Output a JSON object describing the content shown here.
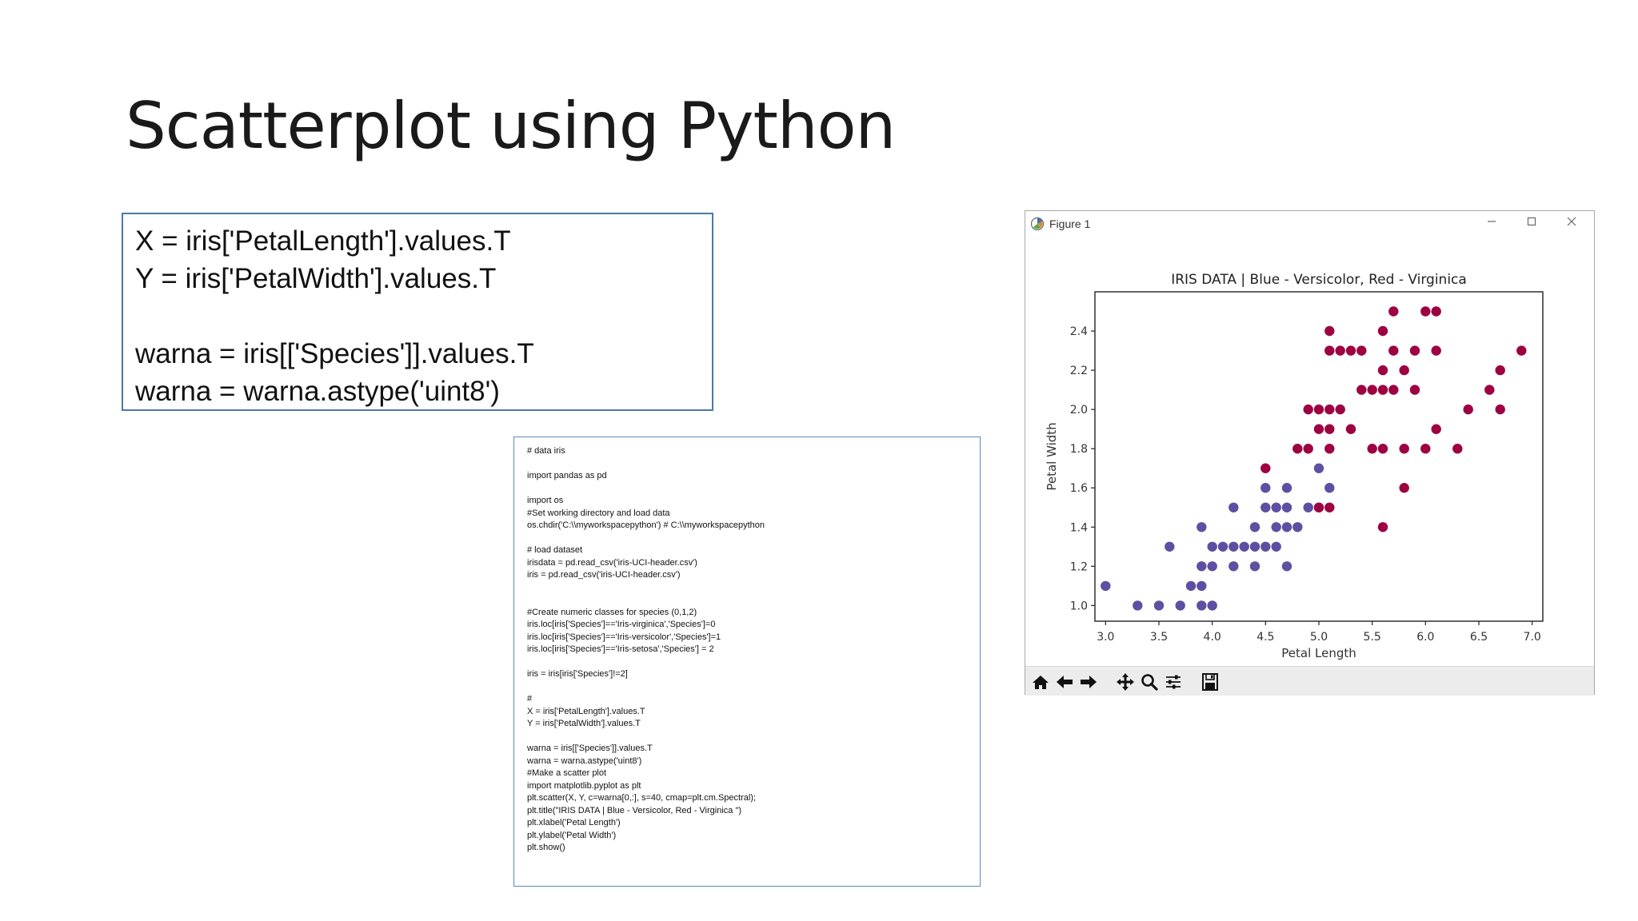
{
  "slide": {
    "title": "Scatterplot using Python",
    "code_box_lines": [
      "X = iris['PetalLength'].values.T",
      "Y = iris['PetalWidth'].values.T",
      "",
      "warna = iris[['Species']].values.T",
      "warna = warna.astype('uint8')"
    ],
    "full_code_lines": [
      "# data iris",
      "",
      "import pandas as pd",
      "",
      "import os",
      "#Set working directory and load data",
      "os.chdir('C:\\\\myworkspacepython') # C:\\\\myworkspacepython",
      "",
      "# load dataset",
      "irisdata = pd.read_csv('iris-UCI-header.csv')",
      "iris = pd.read_csv('iris-UCI-header.csv')",
      "",
      "",
      "#Create numeric classes for species (0,1,2)",
      "iris.loc[iris['Species']=='Iris-virginica','Species']=0",
      "iris.loc[iris['Species']=='Iris-versicolor','Species']=1",
      "iris.loc[iris['Species']=='Iris-setosa','Species'] = 2",
      "",
      "iris = iris[iris['Species']!=2]",
      "",
      "#",
      "X = iris['PetalLength'].values.T",
      "Y = iris['PetalWidth'].values.T",
      "",
      "warna = iris[['Species']].values.T",
      "warna = warna.astype('uint8')",
      "#Make a scatter plot",
      "import matplotlib.pyplot as plt",
      "plt.scatter(X, Y, c=warna[0,:], s=40, cmap=plt.cm.Spectral);",
      "plt.title(\"IRIS DATA | Blue - Versicolor, Red - Virginica \")",
      "plt.xlabel('Petal Length')",
      "plt.ylabel('Petal Width')",
      "plt.show()"
    ]
  },
  "figure_window": {
    "title": "Figure 1",
    "icons": {
      "app": "matplotlib-icon",
      "minimize": "minimize-icon",
      "maximize": "maximize-icon",
      "close": "close-icon"
    },
    "toolbar": [
      "home-icon",
      "back-arrow-icon",
      "forward-arrow-icon",
      "pan-icon",
      "zoom-icon",
      "subplots-icon",
      "save-icon"
    ]
  },
  "chart_data": {
    "type": "scatter",
    "title": "IRIS DATA | Blue - Versicolor, Red - Virginica",
    "xlabel": "Petal Length",
    "ylabel": "Petal Width",
    "xlim": [
      2.9,
      7.1
    ],
    "ylim": [
      0.92,
      2.6
    ],
    "xticks": [
      "3.0",
      "3.5",
      "4.0",
      "4.5",
      "5.0",
      "5.5",
      "6.0",
      "6.5",
      "7.0"
    ],
    "yticks": [
      "1.0",
      "1.2",
      "1.4",
      "1.6",
      "1.8",
      "2.0",
      "2.2",
      "2.4"
    ],
    "grid": false,
    "series": [
      {
        "color": "#5e4fa2",
        "points": [
          [
            3.0,
            1.1
          ],
          [
            3.3,
            1.0
          ],
          [
            3.5,
            1.0
          ],
          [
            3.7,
            1.0
          ],
          [
            3.9,
            1.0
          ],
          [
            4.0,
            1.0
          ],
          [
            3.6,
            1.3
          ],
          [
            3.8,
            1.1
          ],
          [
            3.9,
            1.1
          ],
          [
            3.9,
            1.2
          ],
          [
            4.0,
            1.2
          ],
          [
            4.2,
            1.2
          ],
          [
            4.4,
            1.2
          ],
          [
            4.7,
            1.2
          ],
          [
            3.9,
            1.4
          ],
          [
            4.0,
            1.3
          ],
          [
            4.1,
            1.3
          ],
          [
            4.2,
            1.3
          ],
          [
            4.3,
            1.3
          ],
          [
            4.4,
            1.3
          ],
          [
            4.5,
            1.3
          ],
          [
            4.6,
            1.3
          ],
          [
            4.4,
            1.4
          ],
          [
            4.6,
            1.4
          ],
          [
            4.7,
            1.4
          ],
          [
            4.8,
            1.4
          ],
          [
            4.2,
            1.5
          ],
          [
            4.5,
            1.5
          ],
          [
            4.6,
            1.5
          ],
          [
            4.7,
            1.5
          ],
          [
            4.9,
            1.5
          ],
          [
            5.0,
            1.5
          ],
          [
            4.5,
            1.6
          ],
          [
            4.7,
            1.6
          ],
          [
            5.1,
            1.6
          ],
          [
            5.0,
            1.7
          ]
        ]
      },
      {
        "color": "#9e0142",
        "points": [
          [
            4.5,
            1.7
          ],
          [
            5.0,
            1.5
          ],
          [
            5.1,
            1.5
          ],
          [
            5.6,
            1.4
          ],
          [
            5.8,
            1.6
          ],
          [
            4.8,
            1.8
          ],
          [
            4.9,
            1.8
          ],
          [
            5.1,
            1.8
          ],
          [
            5.5,
            1.8
          ],
          [
            5.6,
            1.8
          ],
          [
            5.8,
            1.8
          ],
          [
            6.0,
            1.8
          ],
          [
            6.3,
            1.8
          ],
          [
            5.0,
            1.9
          ],
          [
            5.1,
            1.9
          ],
          [
            5.3,
            1.9
          ],
          [
            6.1,
            1.9
          ],
          [
            4.9,
            2.0
          ],
          [
            5.0,
            2.0
          ],
          [
            5.1,
            2.0
          ],
          [
            5.2,
            2.0
          ],
          [
            6.4,
            2.0
          ],
          [
            6.7,
            2.0
          ],
          [
            5.4,
            2.1
          ],
          [
            5.5,
            2.1
          ],
          [
            5.6,
            2.1
          ],
          [
            5.7,
            2.1
          ],
          [
            5.9,
            2.1
          ],
          [
            6.6,
            2.1
          ],
          [
            5.6,
            2.2
          ],
          [
            5.8,
            2.2
          ],
          [
            6.7,
            2.2
          ],
          [
            5.1,
            2.3
          ],
          [
            5.2,
            2.3
          ],
          [
            5.3,
            2.3
          ],
          [
            5.4,
            2.3
          ],
          [
            5.7,
            2.3
          ],
          [
            5.9,
            2.3
          ],
          [
            6.1,
            2.3
          ],
          [
            6.9,
            2.3
          ],
          [
            5.1,
            2.4
          ],
          [
            5.6,
            2.4
          ],
          [
            5.7,
            2.5
          ],
          [
            6.0,
            2.5
          ],
          [
            6.1,
            2.5
          ]
        ]
      }
    ]
  }
}
